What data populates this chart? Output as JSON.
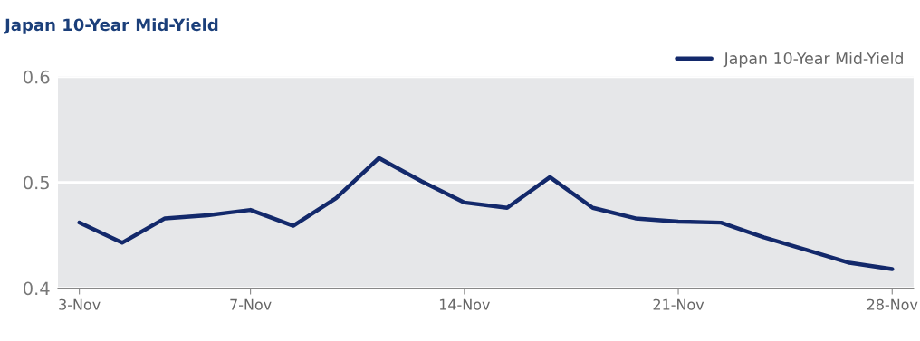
{
  "chart_data": {
    "type": "line",
    "title": "Japan 10-Year Mid-Yield",
    "categories": [
      "3-Nov",
      null,
      null,
      null,
      "7-Nov",
      null,
      null,
      null,
      null,
      "14-Nov",
      null,
      null,
      null,
      null,
      "21-Nov",
      null,
      null,
      null,
      null,
      "28-Nov"
    ],
    "series": [
      {
        "name": "Japan 10-Year Mid-Yield",
        "color": "#13296b",
        "values": [
          0.462,
          0.443,
          0.466,
          0.469,
          0.474,
          0.459,
          0.485,
          0.523,
          0.501,
          0.481,
          0.476,
          0.505,
          0.476,
          0.466,
          0.463,
          0.462,
          0.448,
          0.436,
          0.424,
          0.418
        ]
      }
    ],
    "ylim": [
      0.4,
      0.6
    ],
    "yticks": [
      0.4,
      0.5,
      0.6
    ],
    "grid": "y",
    "legend": "top right",
    "marker": "none",
    "line_style": "solid"
  }
}
